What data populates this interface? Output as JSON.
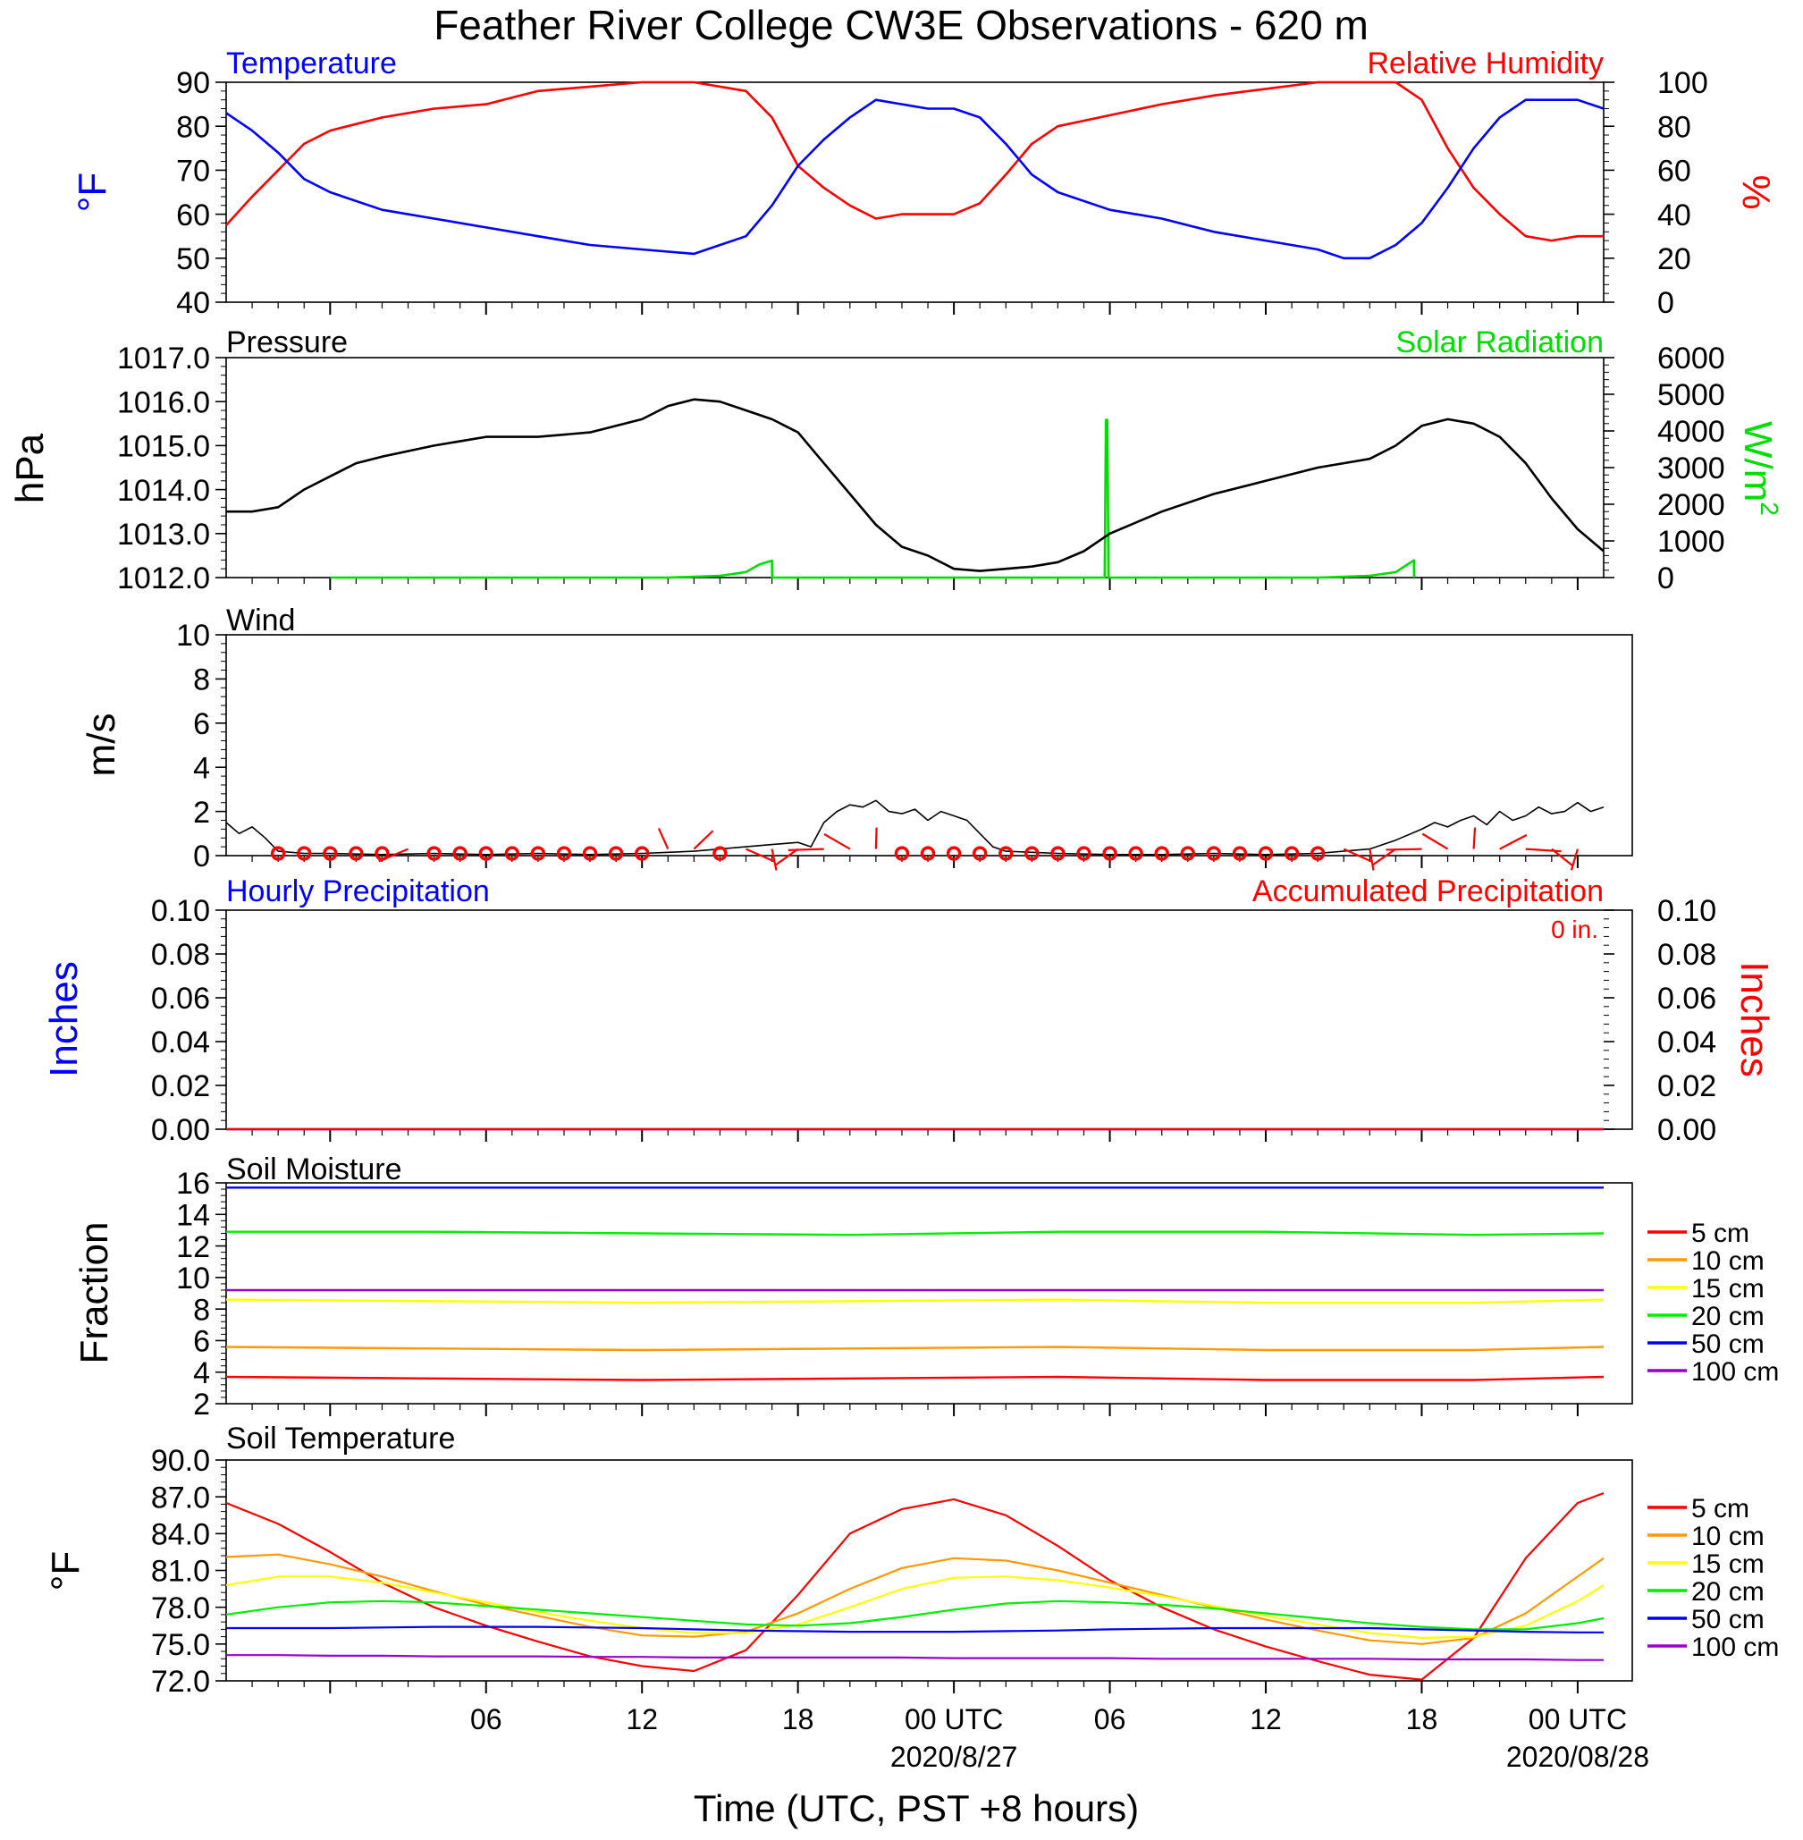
{
  "figure": {
    "title": "Feather River College CW3E Observations - 620 m",
    "x_axis_label": "Time (UTC, PST +8 hours)",
    "x_tick_labels": [
      "06",
      "12",
      "18",
      "00 UTC",
      "06",
      "12",
      "18",
      "00 UTC"
    ],
    "x_date_labels": [
      "2020/8/27",
      "2020/08/28"
    ]
  },
  "colors": {
    "temperature": "#0000ff",
    "humidity": "#ff0000",
    "pressure": "#000000",
    "solar": "#00dd00",
    "wind_speed": "#000000",
    "wind_direction": "#ff0000",
    "hourly_precip": "#0000ff",
    "accum_precip": "#ff0000",
    "depth_5cm": "#ff0000",
    "depth_10cm": "#ff9900",
    "depth_15cm": "#ffff00",
    "depth_20cm": "#00ee00",
    "depth_50cm": "#0000ee",
    "depth_100cm": "#9900cc"
  },
  "chart_data": [
    {
      "type": "line",
      "title_left": "Temperature",
      "title_right": "Relative Humidity",
      "ylabel_left": "°F",
      "ylabel_right": "%",
      "ylim_left": [
        40,
        90
      ],
      "ylim_right": [
        0,
        100
      ],
      "yticks_left": [
        "90",
        "80",
        "70",
        "60",
        "50",
        "40"
      ],
      "yticks_right": [
        "100",
        "80",
        "60",
        "40",
        "20",
        "0"
      ],
      "x_hours": [
        -4,
        -3,
        -2,
        -1,
        0,
        2,
        4,
        6,
        8,
        10,
        12,
        14,
        16,
        17,
        18,
        19,
        20,
        21,
        22,
        23,
        24,
        25,
        26,
        27,
        28,
        30,
        32,
        34,
        36,
        38,
        39,
        40,
        41,
        42,
        43,
        44,
        45,
        46,
        47,
        48,
        49
      ],
      "series": [
        {
          "name": "Temperature",
          "axis": "left",
          "values": [
            83,
            79,
            74,
            68,
            65,
            61,
            59,
            57,
            55,
            53,
            52,
            51,
            55,
            62,
            71,
            77,
            82,
            86,
            85,
            84,
            84,
            82,
            76,
            69,
            65,
            61,
            59,
            56,
            54,
            52,
            50,
            50,
            53,
            58,
            66,
            75,
            82,
            86,
            86,
            86,
            84
          ]
        },
        {
          "name": "Relative Humidity",
          "axis": "right",
          "values": [
            35,
            48,
            60,
            72,
            78,
            84,
            88,
            90,
            96,
            98,
            100,
            100,
            96,
            84,
            62,
            52,
            44,
            38,
            40,
            40,
            40,
            45,
            58,
            72,
            80,
            85,
            90,
            94,
            97,
            100,
            100,
            100,
            100,
            92,
            70,
            52,
            40,
            30,
            28,
            30,
            30
          ]
        }
      ]
    },
    {
      "type": "line",
      "title_left": "Pressure",
      "title_right": "Solar Radiation",
      "ylabel_left": "hPa",
      "ylabel_right": "W/m",
      "ylabel_right_sup": "2",
      "ylim_left": [
        1012.0,
        1017.0
      ],
      "ylim_right": [
        0,
        6000
      ],
      "yticks_left": [
        "1017.0",
        "1016.0",
        "1015.0",
        "1014.0",
        "1013.0",
        "1012.0"
      ],
      "yticks_right": [
        "6000",
        "5000",
        "4000",
        "3000",
        "2000",
        "1000",
        "0"
      ],
      "x_hours": [
        -4,
        -3,
        -2,
        -1,
        0,
        1,
        2,
        4,
        6,
        8,
        10,
        12,
        13,
        14,
        15,
        16,
        17,
        18,
        19,
        20,
        21,
        22,
        23,
        24,
        25,
        26,
        27,
        28,
        29,
        30,
        32,
        34,
        36,
        38,
        39,
        40,
        41,
        42,
        43,
        44,
        45,
        46,
        47,
        48,
        49
      ],
      "pressure_values": [
        1013.5,
        1013.5,
        1013.6,
        1014.0,
        1014.3,
        1014.6,
        1014.75,
        1015.0,
        1015.2,
        1015.2,
        1015.3,
        1015.6,
        1015.9,
        1016.05,
        1016.0,
        1015.8,
        1015.6,
        1015.3,
        1014.6,
        1013.9,
        1013.2,
        1012.7,
        1012.5,
        1012.2,
        1012.15,
        1012.2,
        1012.25,
        1012.35,
        1012.6,
        1013.0,
        1013.5,
        1013.9,
        1014.2,
        1014.5,
        1014.6,
        1014.7,
        1015.0,
        1015.45,
        1015.6,
        1015.5,
        1015.2,
        1014.6,
        1013.8,
        1013.1,
        1012.6
      ],
      "solar_x": [
        -4,
        0,
        5,
        13,
        15,
        16,
        16.5,
        16.8,
        17.0,
        17.01,
        29.8,
        29.85,
        29.9,
        29.95,
        38,
        40,
        41,
        41.5,
        41.7,
        41.71,
        49
      ],
      "solar_values": [
        null,
        0,
        0,
        0,
        50,
        150,
        350,
        420,
        460,
        0,
        0,
        4300,
        4300,
        0,
        0,
        50,
        150,
        380,
        470,
        0,
        null
      ]
    },
    {
      "type": "line",
      "title_left": "Wind",
      "ylabel_left": "m/s",
      "ylim_left": [
        0,
        10
      ],
      "yticks_left": [
        "10",
        "8",
        "6",
        "4",
        "2",
        "0"
      ],
      "x_hours": [
        -4,
        -3.5,
        -3,
        -2.5,
        -2,
        -1,
        0,
        2,
        4,
        6,
        8,
        10,
        12,
        14,
        15,
        16,
        17,
        18,
        18.5,
        19,
        19.5,
        20,
        20.5,
        21,
        21.5,
        22,
        22.5,
        23,
        23.5,
        24,
        24.5,
        25,
        25.5,
        26,
        28,
        30,
        32,
        34,
        36,
        38,
        40,
        41,
        42,
        42.5,
        43,
        43.5,
        44,
        44.5,
        45,
        45.5,
        46,
        46.5,
        47,
        47.5,
        48,
        48.5,
        49
      ],
      "speed_values": [
        1.5,
        1.0,
        1.3,
        0.8,
        0.2,
        0.1,
        0.1,
        0.05,
        0.1,
        0.05,
        0.1,
        0.05,
        0.1,
        0.2,
        0.3,
        0.4,
        0.5,
        0.6,
        0.4,
        1.5,
        2.0,
        2.3,
        2.2,
        2.5,
        2.0,
        1.9,
        2.1,
        1.6,
        2.0,
        1.8,
        1.6,
        1.0,
        0.4,
        0.2,
        0.1,
        0.05,
        0.05,
        0.1,
        0.05,
        0.1,
        0.3,
        0.7,
        1.2,
        1.5,
        1.3,
        1.6,
        1.8,
        1.4,
        2.0,
        1.6,
        1.8,
        2.2,
        1.9,
        2.0,
        2.4,
        2.0,
        2.2
      ],
      "direction_markers_hours": [
        -2,
        -1,
        0,
        1,
        2,
        3,
        4,
        5,
        6,
        7,
        8,
        9,
        10,
        11,
        12,
        13,
        14,
        15,
        16,
        17,
        18,
        19,
        20,
        21,
        22,
        23,
        24,
        25,
        26,
        27,
        28,
        29,
        30,
        31,
        32,
        33,
        34,
        35,
        36,
        37,
        38,
        39,
        40,
        41,
        42,
        43,
        44,
        45,
        46,
        47,
        48
      ],
      "calm_circle_hours": [
        -2,
        -1,
        0,
        1,
        2,
        4,
        5,
        6,
        7,
        8,
        9,
        10,
        11,
        12,
        15,
        22,
        23,
        24,
        25,
        26,
        27,
        28,
        29,
        30,
        31,
        32,
        33,
        34,
        35,
        36,
        37,
        38
      ]
    },
    {
      "type": "line",
      "title_left": "Hourly Precipitation",
      "title_right": "Accumulated Precipitation",
      "annotation": "0 in.",
      "ylabel_left": "Inches",
      "ylabel_right": "Inches",
      "ylim_left": [
        0.0,
        0.1
      ],
      "ylim_right": [
        0.0,
        0.1
      ],
      "yticks_left": [
        "0.10",
        "0.08",
        "0.06",
        "0.04",
        "0.02",
        "0.00"
      ],
      "yticks_right": [
        "0.10",
        "0.08",
        "0.06",
        "0.04",
        "0.02",
        "0.00"
      ],
      "hourly_values": [
        0,
        0
      ],
      "accumulated_values": [
        0,
        0
      ]
    },
    {
      "type": "line",
      "title_left": "Soil Moisture",
      "ylabel_left": "Fraction",
      "ylim_left": [
        2,
        16
      ],
      "yticks_left": [
        "16",
        "14",
        "12",
        "10",
        "8",
        "6",
        "4",
        "2"
      ],
      "legend": [
        "5 cm",
        "10 cm",
        "15 cm",
        "20 cm",
        "50 cm",
        "100 cm"
      ],
      "x_hours": [
        -4,
        4,
        12,
        20,
        28,
        36,
        44,
        49
      ],
      "series": [
        {
          "name": "5 cm",
          "values": [
            3.7,
            3.6,
            3.5,
            3.6,
            3.7,
            3.5,
            3.5,
            3.7
          ]
        },
        {
          "name": "10 cm",
          "values": [
            5.6,
            5.5,
            5.4,
            5.5,
            5.6,
            5.4,
            5.4,
            5.6
          ]
        },
        {
          "name": "15 cm",
          "values": [
            8.6,
            8.5,
            8.4,
            8.5,
            8.6,
            8.4,
            8.4,
            8.6
          ]
        },
        {
          "name": "20 cm",
          "values": [
            12.9,
            12.9,
            12.8,
            12.7,
            12.9,
            12.9,
            12.7,
            12.8
          ]
        },
        {
          "name": "50 cm",
          "values": [
            15.7,
            15.7,
            15.7,
            15.7,
            15.7,
            15.7,
            15.7,
            15.7
          ]
        },
        {
          "name": "100 cm",
          "values": [
            9.2,
            9.2,
            9.2,
            9.2,
            9.2,
            9.2,
            9.2,
            9.2
          ]
        }
      ]
    },
    {
      "type": "line",
      "title_left": "Soil Temperature",
      "ylabel_left": "°F",
      "ylim_left": [
        72.0,
        90.0
      ],
      "yticks_left": [
        "90.0",
        "87.0",
        "84.0",
        "81.0",
        "78.0",
        "75.0",
        "72.0"
      ],
      "legend": [
        "5 cm",
        "10 cm",
        "15 cm",
        "20 cm",
        "50 cm",
        "100 cm"
      ],
      "x_hours": [
        -4,
        -2,
        0,
        2,
        4,
        6,
        8,
        10,
        12,
        14,
        16,
        18,
        20,
        22,
        24,
        26,
        28,
        30,
        32,
        34,
        36,
        38,
        40,
        42,
        44,
        46,
        48,
        49
      ],
      "series": [
        {
          "name": "5 cm",
          "values": [
            86.5,
            84.8,
            82.5,
            80.0,
            78.0,
            76.5,
            75.2,
            74.0,
            73.2,
            72.8,
            74.5,
            79.0,
            84.0,
            86.0,
            86.8,
            85.5,
            83.0,
            80.2,
            78.0,
            76.2,
            74.8,
            73.6,
            72.5,
            72.1,
            75.5,
            82.0,
            86.5,
            87.3
          ]
        },
        {
          "name": "10 cm",
          "values": [
            82.1,
            82.3,
            81.5,
            80.5,
            79.3,
            78.2,
            77.3,
            76.4,
            75.7,
            75.6,
            76.0,
            77.5,
            79.5,
            81.2,
            82.0,
            81.8,
            81.0,
            80.0,
            79.0,
            78.0,
            77.0,
            76.1,
            75.3,
            75.0,
            75.5,
            77.5,
            80.5,
            82.0
          ]
        },
        {
          "name": "15 cm",
          "values": [
            79.8,
            80.5,
            80.5,
            80.0,
            79.2,
            78.4,
            77.6,
            76.9,
            76.3,
            75.9,
            75.9,
            76.6,
            78.0,
            79.5,
            80.4,
            80.5,
            80.2,
            79.6,
            78.9,
            78.1,
            77.3,
            76.6,
            75.9,
            75.5,
            75.6,
            76.5,
            78.5,
            79.8
          ]
        },
        {
          "name": "20 cm",
          "values": [
            77.4,
            78.0,
            78.4,
            78.5,
            78.4,
            78.1,
            77.8,
            77.5,
            77.2,
            76.9,
            76.6,
            76.5,
            76.7,
            77.2,
            77.8,
            78.3,
            78.5,
            78.4,
            78.2,
            77.9,
            77.5,
            77.1,
            76.7,
            76.4,
            76.2,
            76.2,
            76.7,
            77.1
          ]
        },
        {
          "name": "50 cm",
          "values": [
            76.3,
            76.3,
            76.3,
            76.35,
            76.4,
            76.4,
            76.4,
            76.35,
            76.3,
            76.2,
            76.1,
            76.05,
            76.0,
            76.0,
            76.0,
            76.05,
            76.1,
            76.2,
            76.25,
            76.3,
            76.3,
            76.3,
            76.3,
            76.2,
            76.1,
            76.0,
            75.95,
            75.95
          ]
        },
        {
          "name": "100 cm",
          "values": [
            74.1,
            74.1,
            74.05,
            74.05,
            74.0,
            74.0,
            74.0,
            73.95,
            73.95,
            73.9,
            73.9,
            73.9,
            73.9,
            73.9,
            73.85,
            73.85,
            73.85,
            73.85,
            73.8,
            73.8,
            73.8,
            73.8,
            73.8,
            73.75,
            73.75,
            73.75,
            73.7,
            73.7
          ]
        }
      ]
    }
  ]
}
